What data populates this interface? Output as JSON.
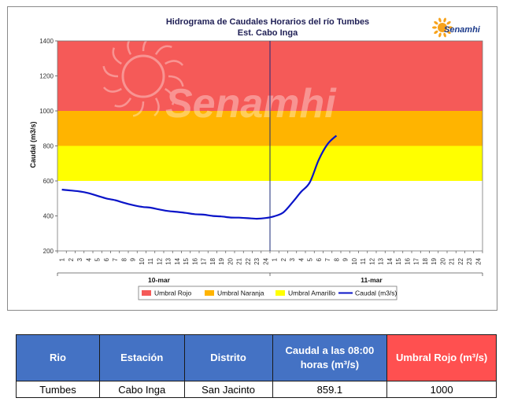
{
  "chart_data": {
    "type": "line",
    "title": "Hidrograma de Caudales Horarios del río Tumbes",
    "subtitle": "Est. Cabo Inga",
    "ylabel": "Caudal  (m3/s)",
    "xlabel": "",
    "ylim": [
      200,
      1400
    ],
    "yticks": [
      200,
      400,
      600,
      800,
      1000,
      1200,
      1400
    ],
    "x_hour_labels": [
      "1",
      "2",
      "3",
      "4",
      "5",
      "6",
      "7",
      "8",
      "9",
      "10",
      "11",
      "12",
      "13",
      "14",
      "15",
      "16",
      "17",
      "18",
      "19",
      "20",
      "21",
      "22",
      "23",
      "24",
      "1",
      "2",
      "3",
      "4",
      "5",
      "6",
      "7",
      "8",
      "9",
      "10",
      "11",
      "12",
      "13",
      "14",
      "15",
      "16",
      "17",
      "18",
      "19",
      "20",
      "21",
      "22",
      "23",
      "24"
    ],
    "day_labels": [
      "10-mar",
      "11-mar"
    ],
    "bands": [
      {
        "name": "Umbral Rojo",
        "from": 1000,
        "to": 1400,
        "color": "#f55a58"
      },
      {
        "name": "Umbral Naranja",
        "from": 800,
        "to": 1000,
        "color": "#ffb400"
      },
      {
        "name": "Umbral Amarillo",
        "from": 600,
        "to": 800,
        "color": "#ffff00"
      }
    ],
    "series": [
      {
        "name": "Caudal (m3/s)",
        "color": "#0a14c8",
        "values": [
          550,
          545,
          540,
          530,
          515,
          500,
          490,
          475,
          462,
          452,
          447,
          437,
          428,
          423,
          417,
          410,
          407,
          400,
          397,
          391,
          390,
          387,
          384,
          388,
          398,
          420,
          475,
          537,
          592,
          720,
          810,
          859
        ]
      }
    ],
    "legend": {
      "position": "bottom",
      "entries": [
        "Umbral Rojo",
        "Umbral Naranja",
        "Umbral Amarillo",
        "Caudal (m3/s)"
      ]
    },
    "grid": false
  },
  "watermark": "Senamhi",
  "logo": {
    "text": "Senamhi",
    "icon": "sun-icon"
  },
  "table": {
    "headers": [
      "Rio",
      "Estación",
      "Distrito",
      "Caudal a las 08:00 horas (m³/s)",
      "Umbral Rojo (m³/s)"
    ],
    "rows": [
      [
        "Tumbes",
        "Cabo Inga",
        "San Jacinto",
        "859.1",
        "1000"
      ]
    ]
  }
}
